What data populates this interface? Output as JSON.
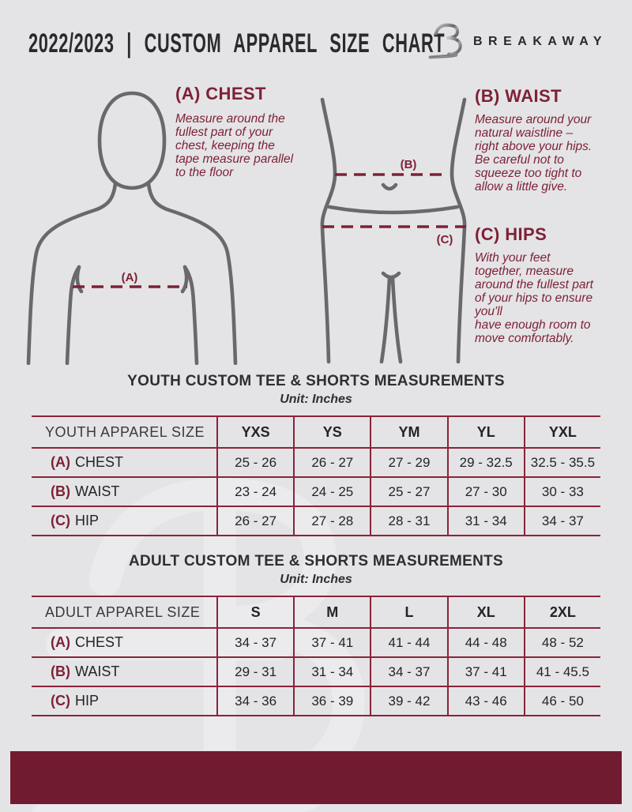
{
  "header": {
    "title": "2022/2023 | CUSTOM APPAREL SIZE CHART",
    "brand": "BREAKAWAY",
    "logo_icon": "breakaway-b-monogram-icon"
  },
  "guide": {
    "chest": {
      "heading": "(A) CHEST",
      "marker": "(A)",
      "body": "Measure around the\nfullest part of your\nchest, keeping the\ntape measure parallel\nto the floor"
    },
    "waist": {
      "heading": "(B) WAIST",
      "marker": "(B)",
      "body": "Measure around your\nnatural waistline –\nright above your hips.\nBe careful not to\nsqueeze too tight to\nallow a little give."
    },
    "hips": {
      "heading": "(C) HIPS",
      "marker": "(C)",
      "body": "With your feet\ntogether, measure\naround the fullest part\nof your hips to ensure\nyou'll\nhave enough room to\nmove comfortably."
    }
  },
  "tables": {
    "youth": {
      "title": "YOUTH CUSTOM TEE & SHORTS MEASUREMENTS",
      "unit": "Unit: Inches",
      "size_header": "YOUTH APPAREL SIZE",
      "sizes": [
        "YXS",
        "YS",
        "YM",
        "YL",
        "YXL"
      ],
      "rows": [
        {
          "marker": "(A)",
          "label": "CHEST",
          "values": [
            "25 - 26",
            "26 - 27",
            "27 - 29",
            "29 - 32.5",
            "32.5 - 35.5"
          ]
        },
        {
          "marker": "(B)",
          "label": "WAIST",
          "values": [
            "23 - 24",
            "24 - 25",
            "25 - 27",
            "27 - 30",
            "30 - 33"
          ]
        },
        {
          "marker": "(C)",
          "label": "HIP",
          "values": [
            "26 - 27",
            "27 - 28",
            "28 - 31",
            "31 - 34",
            "34 - 37"
          ]
        }
      ]
    },
    "adult": {
      "title": "ADULT CUSTOM TEE & SHORTS MEASUREMENTS",
      "unit": "Unit: Inches",
      "size_header": "ADULT APPAREL SIZE",
      "sizes": [
        "S",
        "M",
        "L",
        "XL",
        "2XL"
      ],
      "rows": [
        {
          "marker": "(A)",
          "label": "CHEST",
          "values": [
            "34 - 37",
            "37 - 41",
            "41 - 44",
            "44 - 48",
            "48 - 52"
          ]
        },
        {
          "marker": "(B)",
          "label": "WAIST",
          "values": [
            "29 - 31",
            "31 - 34",
            "34 - 37",
            "37 - 41",
            "41 - 45.5"
          ]
        },
        {
          "marker": "(C)",
          "label": "HIP",
          "values": [
            "34 - 36",
            "36 - 39",
            "39 - 42",
            "43 - 46",
            "46 - 50"
          ]
        }
      ]
    }
  },
  "colors": {
    "background": "#E4E4E6",
    "maroon_accent": "#7E2136",
    "table_line": "#8A2439",
    "footer_bar": "#711B30",
    "figure_gray": "#69696C",
    "text_dark": "#2A2A2D"
  }
}
